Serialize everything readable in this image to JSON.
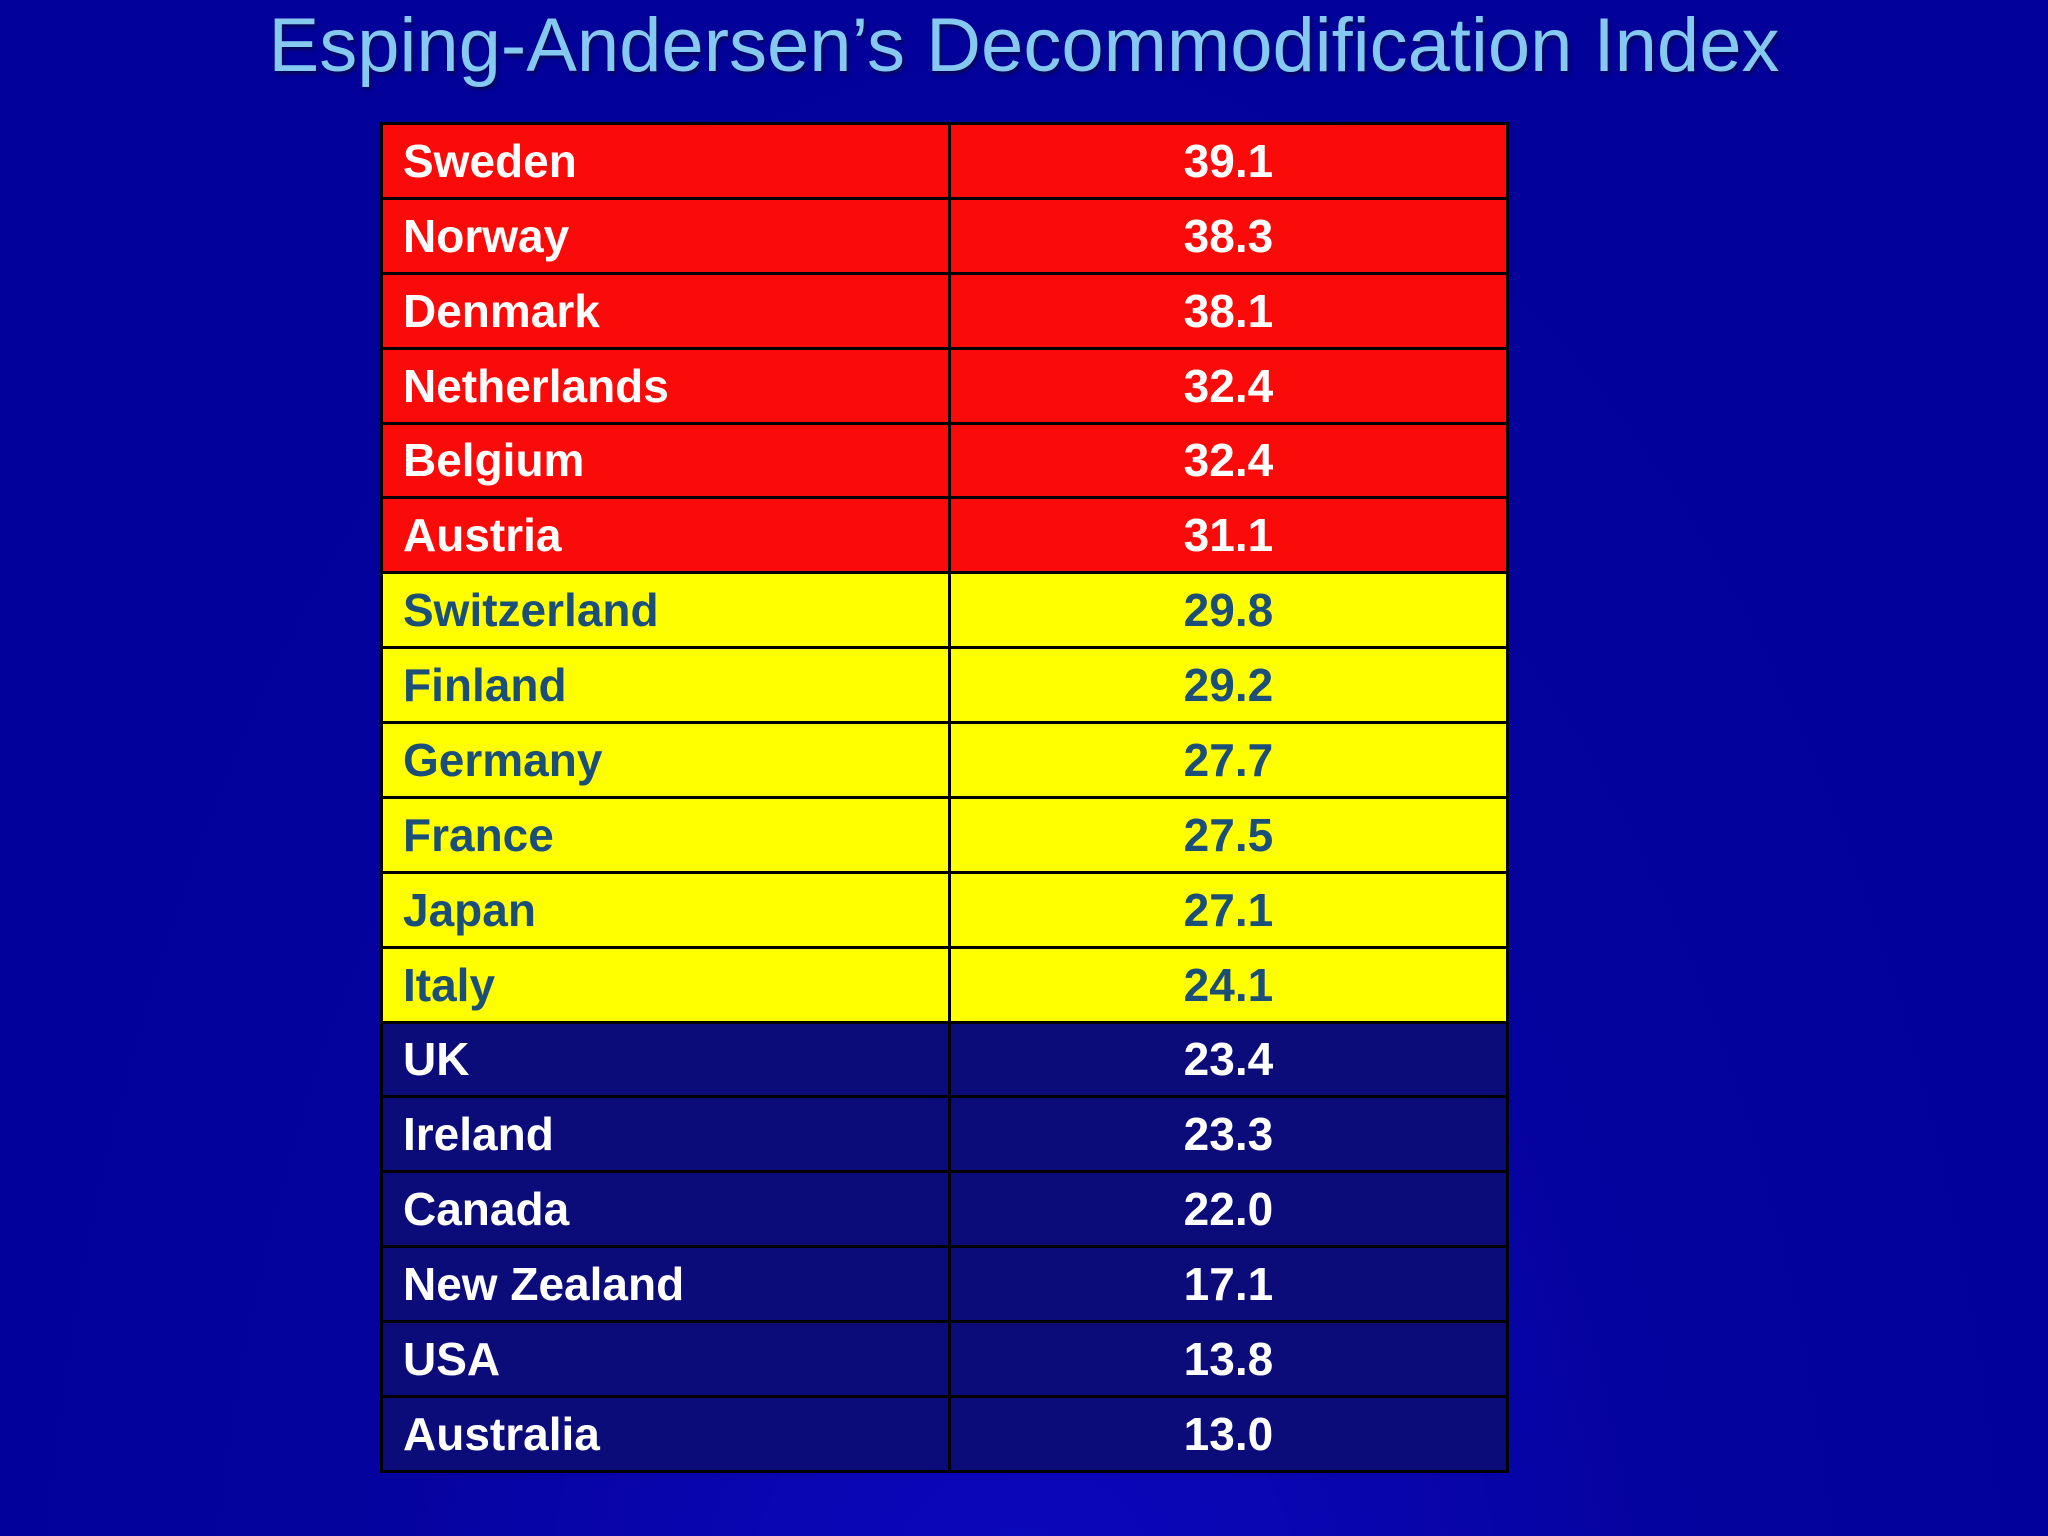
{
  "slide": {
    "title": "Esping-Andersen’s Decommodification Index"
  },
  "colors": {
    "background_blue": "#02029a",
    "background_bottom_glow": "#0d08c2",
    "title_text": "#85c9f1",
    "tier_red_bg": "#fb0a0a",
    "tier_yellow_bg": "#ffff00",
    "tier_navy_bg": "#0b0b7a",
    "text_on_red": "#ffffff",
    "text_on_yellow": "#1b4e79",
    "text_on_navy": "#ffffff",
    "grid_border": "#000000"
  },
  "chart_data": {
    "type": "table",
    "title": "Esping-Andersen’s Decommodification Index",
    "grid": "on",
    "legend_position": "none",
    "rows": [
      {
        "country": "Sweden",
        "value": "39.1",
        "tier": "red"
      },
      {
        "country": "Norway",
        "value": "38.3",
        "tier": "red"
      },
      {
        "country": "Denmark",
        "value": "38.1",
        "tier": "red"
      },
      {
        "country": "Netherlands",
        "value": "32.4",
        "tier": "red"
      },
      {
        "country": "Belgium",
        "value": "32.4",
        "tier": "red"
      },
      {
        "country": "Austria",
        "value": "31.1",
        "tier": "red"
      },
      {
        "country": "Switzerland",
        "value": "29.8",
        "tier": "yellow"
      },
      {
        "country": "Finland",
        "value": "29.2",
        "tier": "yellow"
      },
      {
        "country": "Germany",
        "value": "27.7",
        "tier": "yellow"
      },
      {
        "country": "France",
        "value": "27.5",
        "tier": "yellow"
      },
      {
        "country": "Japan",
        "value": "27.1",
        "tier": "yellow"
      },
      {
        "country": "Italy",
        "value": "24.1",
        "tier": "yellow"
      },
      {
        "country": "UK",
        "value": "23.4",
        "tier": "navy"
      },
      {
        "country": "Ireland",
        "value": "23.3",
        "tier": "navy"
      },
      {
        "country": "Canada",
        "value": "22.0",
        "tier": "navy"
      },
      {
        "country": "New Zealand",
        "value": "17.1",
        "tier": "navy"
      },
      {
        "country": "USA",
        "value": "13.8",
        "tier": "navy"
      },
      {
        "country": "Australia",
        "value": "13.0",
        "tier": "navy"
      }
    ]
  }
}
